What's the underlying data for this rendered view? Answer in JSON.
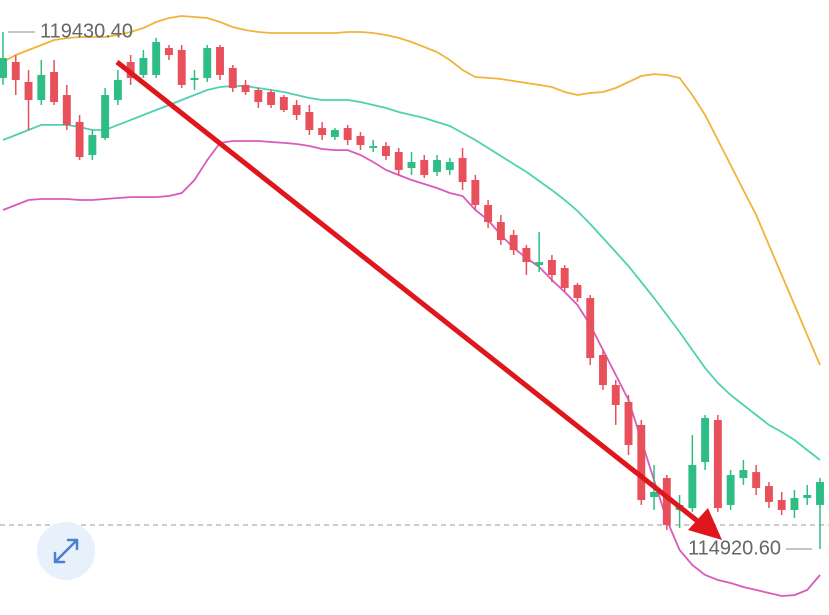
{
  "chart_data": {
    "type": "candlestick",
    "up_color": "#2ebd85",
    "down_color": "#e8505b",
    "ylim": [
      114345,
      119710
    ],
    "open": [
      119030,
      119169,
      118995,
      118838,
      119082,
      118881,
      118646,
      118358,
      118506,
      118838,
      119169,
      119056,
      119056,
      119291,
      119274,
      119012,
      119030,
      119300,
      119117,
      118969,
      118925,
      118907,
      118864,
      118794,
      118733,
      118593,
      118515,
      118593,
      118524,
      118419,
      118436,
      118384,
      118244,
      118314,
      118210,
      118227,
      118332,
      118140,
      117922,
      117773,
      117660,
      117547,
      117398,
      117442,
      117372,
      117224,
      117110,
      116613,
      116351,
      116203,
      116003,
      115374,
      115540,
      115261,
      115278,
      115680,
      116046,
      115305,
      115540,
      115592,
      115470,
      115348,
      115261,
      115366,
      115305
    ],
    "high": [
      119430.4,
      119230,
      119099,
      119187,
      119187,
      118969,
      118707,
      118576,
      118942,
      119099,
      119230,
      119274,
      119379,
      119317,
      119317,
      119099,
      119317,
      119317,
      119143,
      119012,
      118942,
      118925,
      118881,
      118838,
      118794,
      118646,
      118593,
      118620,
      118558,
      118489,
      118471,
      118419,
      118384,
      118358,
      118358,
      118332,
      118419,
      118183,
      117965,
      117834,
      117704,
      117573,
      117686,
      117485,
      117398,
      117241,
      117136,
      116657,
      116395,
      116264,
      116046,
      115654,
      115566,
      115392,
      115915,
      116090,
      116090,
      115610,
      115697,
      115654,
      115505,
      115418,
      115435,
      115479,
      115540
    ],
    "low": [
      118969,
      118881,
      118576,
      118794,
      118794,
      118576,
      118314,
      118314,
      118489,
      118794,
      118969,
      119030,
      119030,
      119187,
      118942,
      118925,
      118995,
      119012,
      118907,
      118881,
      118768,
      118768,
      118733,
      118663,
      118532,
      118489,
      118489,
      118445,
      118401,
      118384,
      118314,
      118183,
      118183,
      118157,
      118175,
      118183,
      118052,
      117878,
      117721,
      117573,
      117485,
      117311,
      117337,
      117250,
      117163,
      117075,
      116526,
      116308,
      116003,
      115741,
      115305,
      115261,
      115087,
      115104,
      115244,
      115610,
      115244,
      115261,
      115479,
      115392,
      115278,
      115217,
      115191,
      115305,
      114920.6
    ],
    "close": [
      119204,
      119012,
      118838,
      119056,
      118820,
      118620,
      118340,
      118532,
      118881,
      119012,
      119030,
      119204,
      119344,
      119230,
      118969,
      119030,
      119291,
      119056,
      118942,
      118907,
      118820,
      118794,
      118750,
      118707,
      118576,
      118532,
      118576,
      118489,
      118445,
      118436,
      118349,
      118227,
      118297,
      118183,
      118314,
      118297,
      118122,
      117922,
      117773,
      117616,
      117529,
      117424,
      117424,
      117311,
      117198,
      117110,
      116587,
      116351,
      116177,
      115828,
      115348,
      115418,
      115130,
      115305,
      115654,
      116064,
      115278,
      115566,
      115610,
      115453,
      115331,
      115261,
      115366,
      115392,
      115505
    ],
    "bands": [
      {
        "color": "#f0b43a",
        "values": [
          119169,
          119230,
          119274,
          119317,
          119361,
          119378,
          119387,
          119387,
          119387,
          119405,
          119431,
          119466,
          119518,
          119553,
          119570,
          119562,
          119553,
          119518,
          119474,
          119448,
          119431,
          119422,
          119422,
          119422,
          119422,
          119422,
          119422,
          119431,
          119431,
          119422,
          119405,
          119379,
          119344,
          119300,
          119256,
          119187,
          119099,
          119038,
          119030,
          119021,
          119003,
          118986,
          118969,
          118951,
          118907,
          118881,
          118899,
          118907,
          118942,
          118995,
          119047,
          119064,
          119056,
          119030,
          118881,
          118707,
          118489,
          118271,
          118052,
          117834,
          117573,
          117311,
          117049,
          116788,
          116526
        ]
      },
      {
        "color": "#4fd1b1",
        "values": [
          118489,
          118532,
          118576,
          118620,
          118620,
          118620,
          118602,
          118576,
          118576,
          118620,
          118663,
          118707,
          118750,
          118794,
          118838,
          118881,
          118925,
          118951,
          118960,
          118960,
          118942,
          118925,
          118907,
          118881,
          118855,
          118838,
          118838,
          118838,
          118820,
          118794,
          118768,
          118733,
          118707,
          118681,
          118646,
          118611,
          118550,
          118489,
          118419,
          118349,
          118279,
          118210,
          118131,
          118052,
          117965,
          117869,
          117756,
          117634,
          117512,
          117389,
          117250,
          117110,
          116962,
          116814,
          116657,
          116500,
          116369,
          116264,
          116177,
          116090,
          116003,
          115941,
          115872,
          115784,
          115697
        ]
      },
      {
        "color": "#d95bb9",
        "values": [
          117878,
          117922,
          117965,
          117974,
          117974,
          117974,
          117965,
          117965,
          117974,
          117983,
          117991,
          117991,
          117991,
          118000,
          118026,
          118140,
          118314,
          118463,
          118480,
          118480,
          118480,
          118471,
          118463,
          118454,
          118436,
          118410,
          118401,
          118401,
          118358,
          118297,
          118227,
          118183,
          118140,
          118105,
          118070,
          118026,
          118000,
          117878,
          117791,
          117660,
          117547,
          117459,
          117381,
          117267,
          117163,
          117049,
          116875,
          116657,
          116439,
          116221,
          115872,
          115523,
          115174,
          114912,
          114781,
          114694,
          114650,
          114624,
          114589,
          114563,
          114537,
          114511,
          114519,
          114563,
          114694
        ]
      }
    ],
    "reference_line": 115130,
    "high_label": {
      "value": 119430.4,
      "label": "119430.40"
    },
    "low_label": {
      "value": 114920.6,
      "label": "114920.60"
    }
  }
}
